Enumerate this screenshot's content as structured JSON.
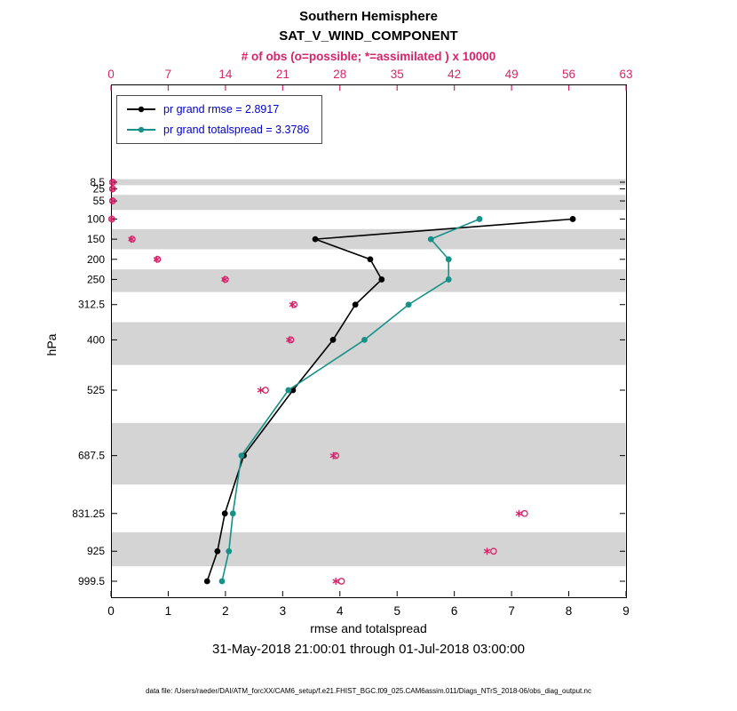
{
  "figure": {
    "title_line1": "Southern Hemisphere",
    "title_line2": "SAT_V_WIND_COMPONENT",
    "top_axis_label": "# of obs (o=possible; *=assimilated ) x 10000",
    "xlabel": "rmse and totalspread",
    "ylabel": "hPa",
    "subtitle": "31-May-2018 21:00:01 through 01-Jul-2018 03:00:00",
    "footer": "data file: /Users/raeder/DAI/ATM_forcXX/CAM6_setup/f.e21.FHIST_BGC.f09_025.CAM6assim.011/Diags_NTrS_2018-06/obs_diag_output.nc"
  },
  "legend": {
    "text_color": "#0000cd",
    "entries": [
      {
        "label": "pr grand rmse = 2.8917",
        "color": "#000000"
      },
      {
        "label": "pr grand totalspread = 3.3786",
        "color": "#159187"
      }
    ]
  },
  "colors": {
    "obs": "#d6246a",
    "rmse": "#000000",
    "totalspread": "#159187",
    "band": "#d4d4d4"
  },
  "chart_data": {
    "type": "line",
    "title": "Southern Hemisphere SAT_V_WIND_COMPONENT profile",
    "levels_hpa": [
      8.5,
      25,
      55,
      100,
      150,
      200,
      250,
      312.5,
      400,
      525,
      687.5,
      831.25,
      925,
      999.5
    ],
    "series": [
      {
        "name": "pr grand rmse",
        "color": "#000000",
        "values": [
          null,
          null,
          null,
          8.07,
          3.57,
          4.53,
          4.73,
          4.27,
          3.88,
          3.18,
          2.32,
          1.99,
          1.86,
          1.68
        ]
      },
      {
        "name": "pr grand totalspread",
        "color": "#159187",
        "values": [
          null,
          null,
          null,
          6.44,
          5.59,
          5.9,
          5.9,
          5.2,
          4.43,
          3.1,
          2.28,
          2.13,
          2.06,
          1.94
        ]
      }
    ],
    "obs_counts_x10000": {
      "possible": [
        0.2,
        0.2,
        0.2,
        0.1,
        2.6,
        5.7,
        14.0,
        22.4,
        22.0,
        18.9,
        27.5,
        50.6,
        46.8,
        28.2
      ],
      "assimilated": [
        0.2,
        0.2,
        0.2,
        0.1,
        2.5,
        5.6,
        13.9,
        22.2,
        21.8,
        18.3,
        27.2,
        49.9,
        46.0,
        27.5
      ]
    },
    "bottom_axis": {
      "label": "rmse and totalspread",
      "min": 0,
      "max": 9,
      "ticks": [
        0,
        1,
        2,
        3,
        4,
        5,
        6,
        7,
        8,
        9
      ]
    },
    "top_axis": {
      "label": "# of obs (o=possible; *=assimilated ) x 10000",
      "min": 0,
      "max": 63,
      "ticks": [
        0,
        7,
        14,
        21,
        28,
        35,
        42,
        49,
        56,
        63
      ]
    },
    "y_axis": {
      "label": "hPa",
      "direction": "reversed",
      "tick_labels": [
        "8.5",
        "25",
        "55",
        "100",
        "150",
        "200",
        "250",
        "312.5",
        "400",
        "525",
        "687.5",
        "831.25",
        "925",
        "999.5"
      ]
    },
    "shaded_bands_hpa": [
      [
        1,
        16
      ],
      [
        40,
        77.5
      ],
      [
        125,
        175
      ],
      [
        225,
        281.25
      ],
      [
        356.25,
        462.5
      ],
      [
        606.25,
        759.5
      ],
      [
        878,
        962.5
      ]
    ],
    "grid": false,
    "legend_position": "top-left-inside"
  }
}
